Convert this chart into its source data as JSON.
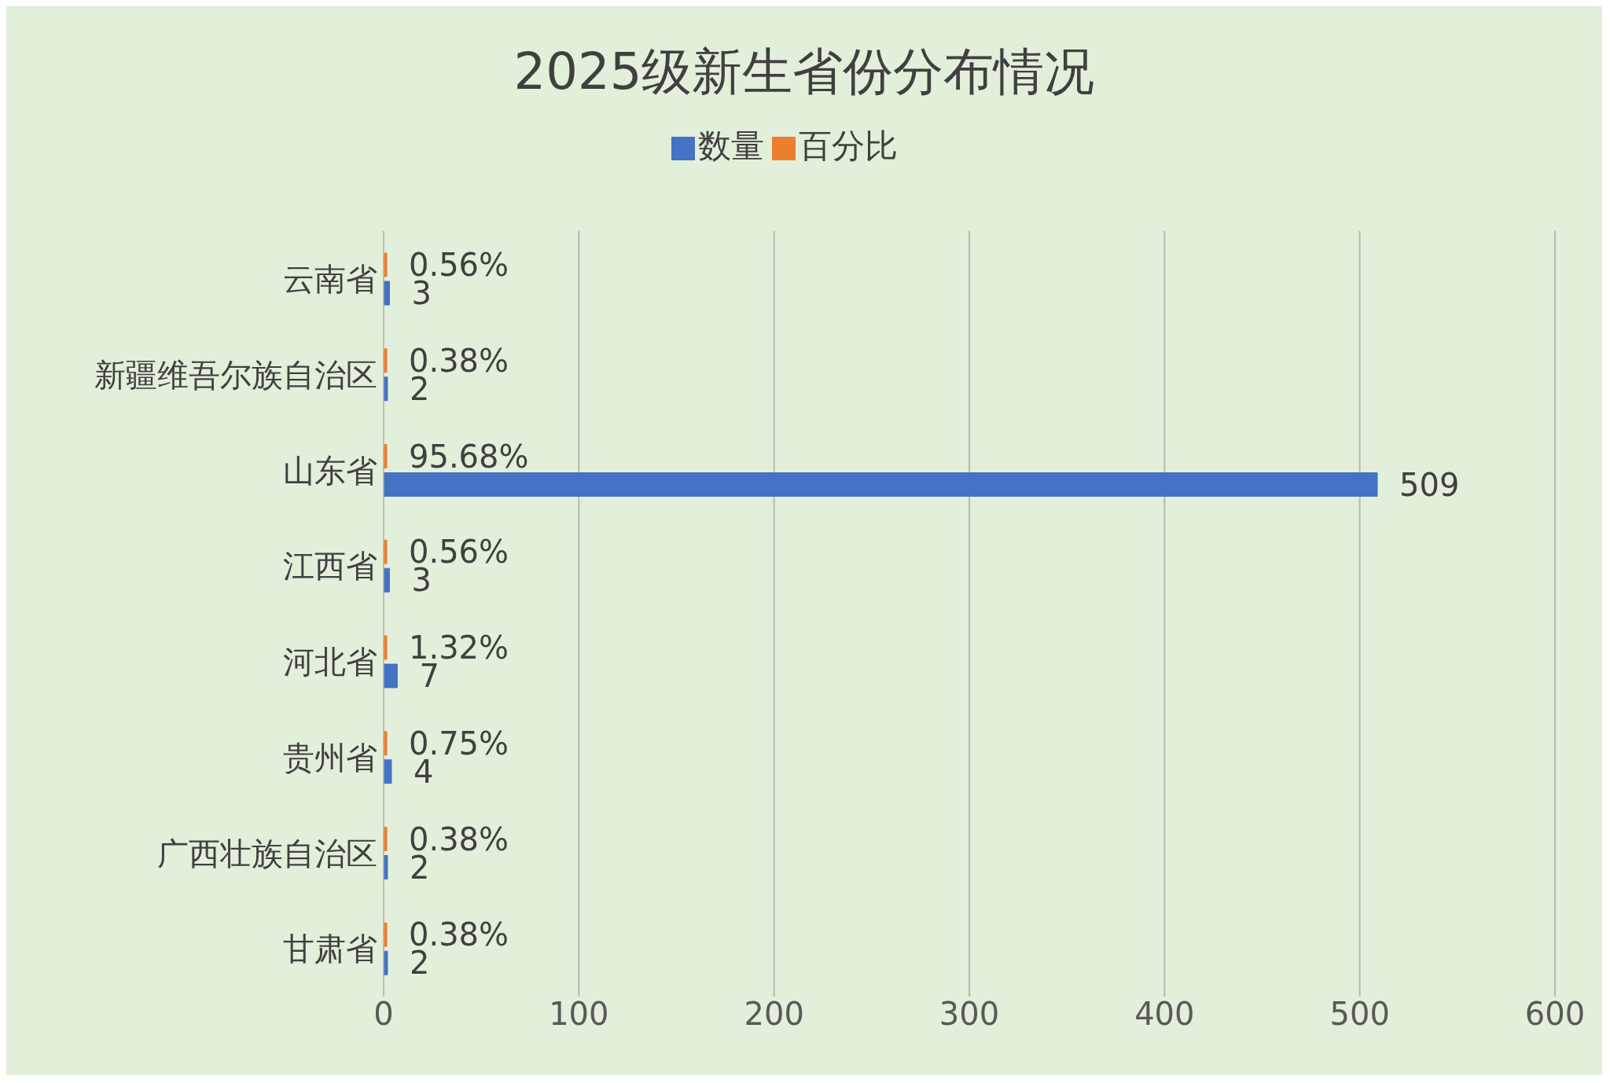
{
  "chart_data": {
    "type": "bar",
    "orientation": "horizontal",
    "title": "2025级新生省份分布情况",
    "categories": [
      "云南省",
      "新疆维吾尔族自治区",
      "山东省",
      "江西省",
      "河北省",
      "贵州省",
      "广西壮族自治区",
      "甘肃省"
    ],
    "series": [
      {
        "name": "百分比",
        "color": "#ed7d31",
        "values": [
          0.0056,
          0.0038,
          0.9568,
          0.0056,
          0.0132,
          0.0075,
          0.0038,
          0.0038
        ],
        "value_labels": [
          "0.56%",
          "0.38%",
          "95.68%",
          "0.56%",
          "1.32%",
          "0.75%",
          "0.38%",
          "0.38%"
        ]
      },
      {
        "name": "数量",
        "color": "#4472c4",
        "values": [
          3,
          2,
          509,
          3,
          7,
          4,
          2,
          2
        ],
        "value_labels": [
          "3",
          "2",
          "509",
          "3",
          "7",
          "4",
          "2",
          "2"
        ]
      }
    ],
    "xlim": [
      0,
      600
    ],
    "xticks": [
      0,
      100,
      200,
      300,
      400,
      500,
      600
    ],
    "grid": "x",
    "legend": "top"
  }
}
